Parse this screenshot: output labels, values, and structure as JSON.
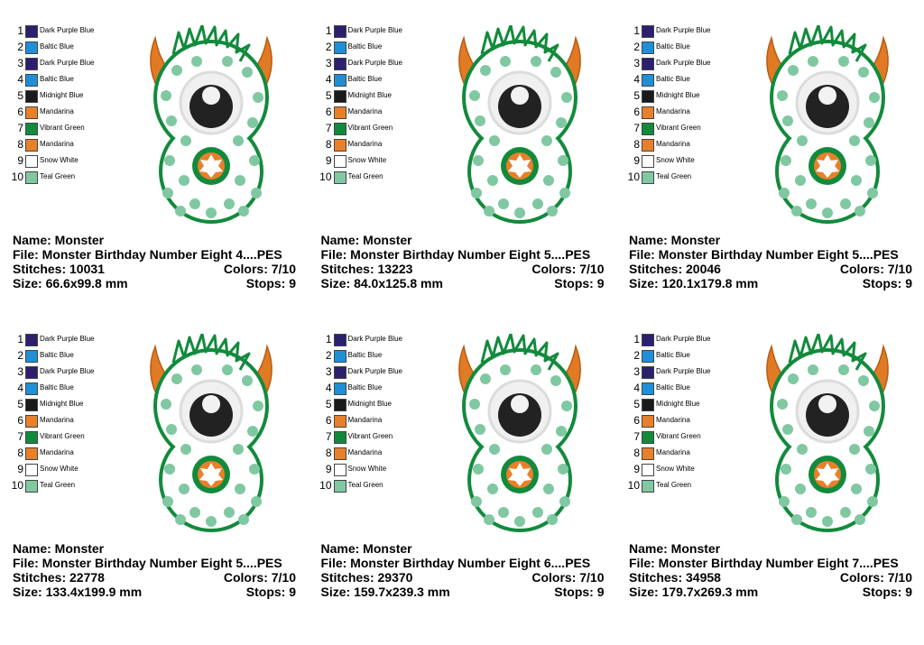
{
  "panels": [
    {
      "palette": [
        {
          "number": 1,
          "name": "Dark Purple Blue",
          "color": "#2b2070"
        },
        {
          "number": 2,
          "name": "Baltic Blue",
          "color": "#1f8fd8"
        },
        {
          "number": 3,
          "name": "Dark Purple Blue",
          "color": "#2b2070"
        },
        {
          "number": 4,
          "name": "Baltic Blue",
          "color": "#1f8fd8"
        },
        {
          "number": 5,
          "name": "Midnight Blue",
          "color": "#1a1a1a"
        },
        {
          "number": 6,
          "name": "Mandarina",
          "color": "#e8802a"
        },
        {
          "number": 7,
          "name": "Vibrant Green",
          "color": "#128a3c"
        },
        {
          "number": 8,
          "name": "Mandarina",
          "color": "#e8802a"
        },
        {
          "number": 9,
          "name": "Snow White",
          "color": "#ffffff"
        },
        {
          "number": 10,
          "name": "Teal Green",
          "color": "#80c8a2"
        }
      ],
      "name": "Name: Monster",
      "file": "File: Monster Birthday Number Eight 4....PES",
      "stitches": "Stitches: 10031",
      "colors": "Colors: 7/10",
      "size": "Size: 66.6x99.8 mm",
      "stops": "Stops: 9"
    },
    {
      "palette": [
        {
          "number": 1,
          "name": "Dark Purple Blue",
          "color": "#2b2070"
        },
        {
          "number": 2,
          "name": "Baltic Blue",
          "color": "#1f8fd8"
        },
        {
          "number": 3,
          "name": "Dark Purple Blue",
          "color": "#2b2070"
        },
        {
          "number": 4,
          "name": "Baltic Blue",
          "color": "#1f8fd8"
        },
        {
          "number": 5,
          "name": "Midnight Blue",
          "color": "#1a1a1a"
        },
        {
          "number": 6,
          "name": "Mandarina",
          "color": "#e8802a"
        },
        {
          "number": 7,
          "name": "Vibrant Green",
          "color": "#128a3c"
        },
        {
          "number": 8,
          "name": "Mandarina",
          "color": "#e8802a"
        },
        {
          "number": 9,
          "name": "Snow White",
          "color": "#ffffff"
        },
        {
          "number": 10,
          "name": "Teal Green",
          "color": "#80c8a2"
        }
      ],
      "name": "Name: Monster",
      "file": "File: Monster Birthday Number Eight 5....PES",
      "stitches": "Stitches: 13223",
      "colors": "Colors: 7/10",
      "size": "Size: 84.0x125.8 mm",
      "stops": "Stops: 9"
    },
    {
      "palette": [
        {
          "number": 1,
          "name": "Dark Purple Blue",
          "color": "#2b2070"
        },
        {
          "number": 2,
          "name": "Baltic Blue",
          "color": "#1f8fd8"
        },
        {
          "number": 3,
          "name": "Dark Purple Blue",
          "color": "#2b2070"
        },
        {
          "number": 4,
          "name": "Baltic Blue",
          "color": "#1f8fd8"
        },
        {
          "number": 5,
          "name": "Midnight Blue",
          "color": "#1a1a1a"
        },
        {
          "number": 6,
          "name": "Mandarina",
          "color": "#e8802a"
        },
        {
          "number": 7,
          "name": "Vibrant Green",
          "color": "#128a3c"
        },
        {
          "number": 8,
          "name": "Mandarina",
          "color": "#e8802a"
        },
        {
          "number": 9,
          "name": "Snow White",
          "color": "#ffffff"
        },
        {
          "number": 10,
          "name": "Teal Green",
          "color": "#80c8a2"
        }
      ],
      "name": "Name: Monster",
      "file": "File: Monster Birthday Number Eight 5....PES",
      "stitches": "Stitches: 20046",
      "colors": "Colors: 7/10",
      "size": "Size: 120.1x179.8 mm",
      "stops": "Stops: 9"
    },
    {
      "palette": [
        {
          "number": 1,
          "name": "Dark Purple Blue",
          "color": "#2b2070"
        },
        {
          "number": 2,
          "name": "Baltic Blue",
          "color": "#1f8fd8"
        },
        {
          "number": 3,
          "name": "Dark Purple Blue",
          "color": "#2b2070"
        },
        {
          "number": 4,
          "name": "Baltic Blue",
          "color": "#1f8fd8"
        },
        {
          "number": 5,
          "name": "Midnight Blue",
          "color": "#1a1a1a"
        },
        {
          "number": 6,
          "name": "Mandarina",
          "color": "#e8802a"
        },
        {
          "number": 7,
          "name": "Vibrant Green",
          "color": "#128a3c"
        },
        {
          "number": 8,
          "name": "Mandarina",
          "color": "#e8802a"
        },
        {
          "number": 9,
          "name": "Snow White",
          "color": "#ffffff"
        },
        {
          "number": 10,
          "name": "Teal Green",
          "color": "#80c8a2"
        }
      ],
      "name": "Name: Monster",
      "file": "File: Monster Birthday Number Eight 5....PES",
      "stitches": "Stitches: 22778",
      "colors": "Colors: 7/10",
      "size": "Size: 133.4x199.9 mm",
      "stops": "Stops: 9"
    },
    {
      "palette": [
        {
          "number": 1,
          "name": "Dark Purple Blue",
          "color": "#2b2070"
        },
        {
          "number": 2,
          "name": "Baltic Blue",
          "color": "#1f8fd8"
        },
        {
          "number": 3,
          "name": "Dark Purple Blue",
          "color": "#2b2070"
        },
        {
          "number": 4,
          "name": "Baltic Blue",
          "color": "#1f8fd8"
        },
        {
          "number": 5,
          "name": "Midnight Blue",
          "color": "#1a1a1a"
        },
        {
          "number": 6,
          "name": "Mandarina",
          "color": "#e8802a"
        },
        {
          "number": 7,
          "name": "Vibrant Green",
          "color": "#128a3c"
        },
        {
          "number": 8,
          "name": "Mandarina",
          "color": "#e8802a"
        },
        {
          "number": 9,
          "name": "Snow White",
          "color": "#ffffff"
        },
        {
          "number": 10,
          "name": "Teal Green",
          "color": "#80c8a2"
        }
      ],
      "name": "Name: Monster",
      "file": "File: Monster Birthday Number Eight 6....PES",
      "stitches": "Stitches: 29370",
      "colors": "Colors: 7/10",
      "size": "Size: 159.7x239.3 mm",
      "stops": "Stops: 9"
    },
    {
      "palette": [
        {
          "number": 1,
          "name": "Dark Purple Blue",
          "color": "#2b2070"
        },
        {
          "number": 2,
          "name": "Baltic Blue",
          "color": "#1f8fd8"
        },
        {
          "number": 3,
          "name": "Dark Purple Blue",
          "color": "#2b2070"
        },
        {
          "number": 4,
          "name": "Baltic Blue",
          "color": "#1f8fd8"
        },
        {
          "number": 5,
          "name": "Midnight Blue",
          "color": "#1a1a1a"
        },
        {
          "number": 6,
          "name": "Mandarina",
          "color": "#e8802a"
        },
        {
          "number": 7,
          "name": "Vibrant Green",
          "color": "#128a3c"
        },
        {
          "number": 8,
          "name": "Mandarina",
          "color": "#e8802a"
        },
        {
          "number": 9,
          "name": "Snow White",
          "color": "#ffffff"
        },
        {
          "number": 10,
          "name": "Teal Green",
          "color": "#80c8a2"
        }
      ],
      "name": "Name: Monster",
      "file": "File: Monster Birthday Number Eight 7....PES",
      "stitches": "Stitches: 34958",
      "colors": "Colors: 7/10",
      "size": "Size: 179.7x269.3 mm",
      "stops": "Stops: 9"
    }
  ]
}
